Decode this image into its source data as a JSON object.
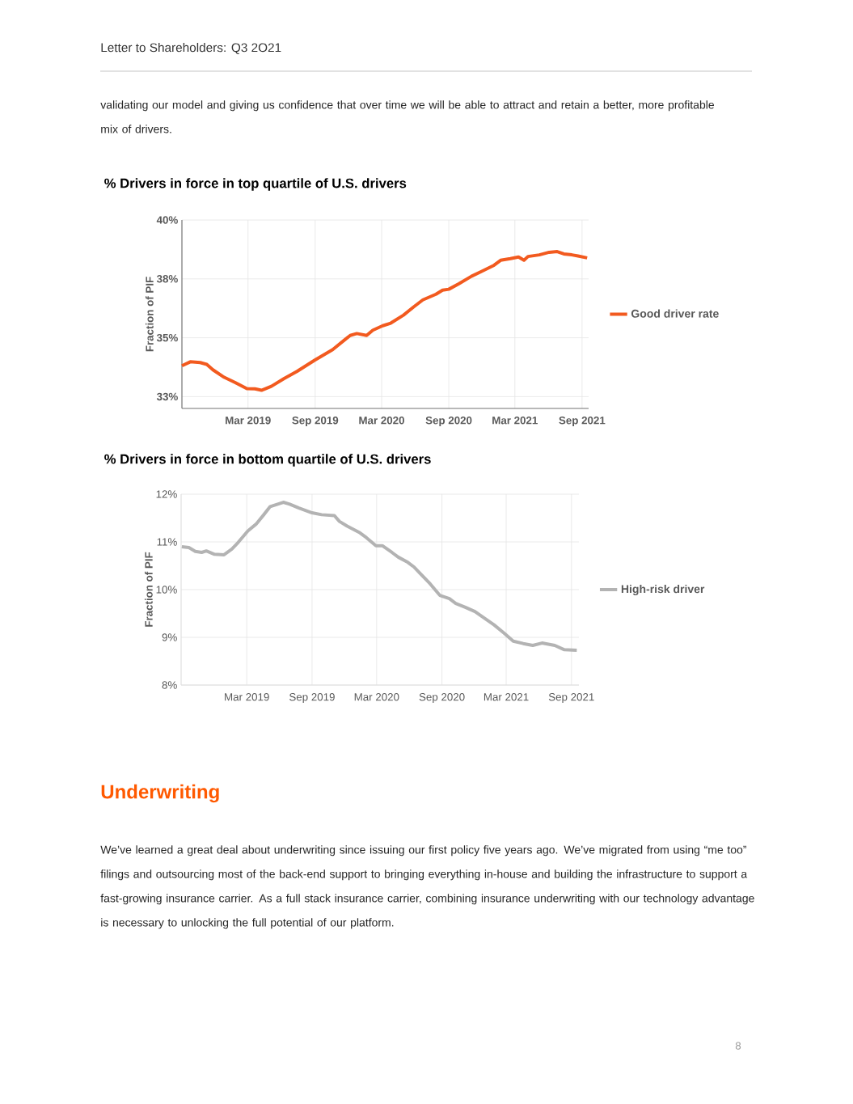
{
  "chart_data": [
    {
      "type": "line",
      "title": "% Drivers in force in top quartile of U.S. drivers",
      "ylabel": "Fraction of PIF",
      "annotations": [
        "Letter to Shareholders: Q3 2O21",
        "validating our model and giving us confidence that over time we will be able to attract and retain a better, more profitable mix of drivers."
      ],
      "x": [
        "2018-09-01",
        "2018-09-24",
        "2018-10-21",
        "2018-11-08",
        "2018-11-25",
        "2018-12-26",
        "2019-01-26",
        "2019-02-26",
        "2019-03-20",
        "2019-04-07",
        "2019-05-04",
        "2019-06-08",
        "2019-07-13",
        "2019-08-31",
        "2019-10-19",
        "2019-11-23",
        "2019-12-06",
        "2019-12-24",
        "2020-01-20",
        "2020-02-06",
        "2020-03-04",
        "2020-03-26",
        "2020-04-30",
        "2020-05-27",
        "2020-06-22",
        "2020-07-28",
        "2020-08-15",
        "2020-09-01",
        "2020-09-28",
        "2020-11-02",
        "2020-11-29",
        "2021-01-03",
        "2021-01-21",
        "2021-02-17",
        "2021-03-11",
        "2021-03-26",
        "2021-04-06",
        "2021-05-07",
        "2021-06-03",
        "2021-06-25",
        "2021-07-13",
        "2021-08-04",
        "2021-08-21",
        "2021-09-15"
      ],
      "series": [
        {
          "name": "Good driver rate",
          "color": "#f25a1f",
          "values": [
            33.81,
            33.98,
            33.95,
            33.87,
            33.64,
            33.32,
            33.09,
            32.84,
            32.83,
            32.77,
            32.94,
            33.27,
            33.57,
            34.05,
            34.5,
            34.94,
            35.1,
            35.18,
            35.1,
            35.32,
            35.51,
            35.62,
            35.96,
            36.3,
            36.61,
            36.85,
            37.02,
            37.06,
            37.29,
            37.61,
            37.81,
            38.08,
            38.29,
            38.36,
            38.43,
            38.29,
            38.45,
            38.52,
            38.63,
            38.66,
            38.56,
            38.52,
            38.47,
            38.39
          ]
        }
      ],
      "xlim": [
        "2018-09-01",
        "2021-09-19"
      ],
      "xticks": [
        {
          "value": "2019-03-01",
          "label": "Mar 2019"
        },
        {
          "value": "2019-09-01",
          "label": "Sep 2019"
        },
        {
          "value": "2020-03-01",
          "label": "Mar 2020"
        },
        {
          "value": "2020-09-01",
          "label": "Sep 2020"
        },
        {
          "value": "2021-03-01",
          "label": "Mar 2021"
        },
        {
          "value": "2021-09-01",
          "label": "Sep 2021"
        }
      ],
      "ylim": [
        32,
        40
      ],
      "yticks": [
        {
          "value": 32.5,
          "label": "33%"
        },
        {
          "value": 35,
          "label": "35%"
        },
        {
          "value": 37.5,
          "label": "38%"
        },
        {
          "value": 40,
          "label": "40%"
        }
      ],
      "grid": true,
      "legend": "right"
    },
    {
      "type": "line",
      "title": "% Drivers in force in bottom quartile  of U.S. drivers",
      "ylabel": "Fraction of PIF",
      "annotations": [
        "Underwriting",
        "We’ve learned a great deal about underwriting since issuing our first policy five years ago. We’ve migrated from using “me too” filings and outsourcing most of the back-end support to bringing everything in-house and building the infrastructure to support a fast-growing insurance carrier. As a full stack insurance carrier, combining insurance underwriting with our technology advantage is necessary to unlocking the full potential of our platform.",
        "8"
      ],
      "x": [
        "2018-08-30",
        "2018-09-19",
        "2018-10-07",
        "2018-10-25",
        "2018-11-07",
        "2018-11-30",
        "2018-12-27",
        "2019-01-18",
        "2019-02-05",
        "2019-03-04",
        "2019-03-27",
        "2019-04-18",
        "2019-05-06",
        "2019-06-12",
        "2019-06-30",
        "2019-07-26",
        "2019-09-01",
        "2019-09-28",
        "2019-11-03",
        "2019-11-17",
        "2019-12-09",
        "2020-01-14",
        "2020-02-01",
        "2020-02-28",
        "2020-03-17",
        "2020-04-13",
        "2020-05-01",
        "2020-05-28",
        "2020-06-15",
        "2020-07-03",
        "2020-07-30",
        "2020-08-26",
        "2020-09-22",
        "2020-10-10",
        "2020-11-06",
        "2020-12-03",
        "2020-12-30",
        "2021-01-26",
        "2021-02-23",
        "2021-03-21",
        "2021-04-18",
        "2021-05-15",
        "2021-06-10",
        "2021-07-16",
        "2021-08-12",
        "2021-09-16"
      ],
      "series": [
        {
          "name": "High-risk driver",
          "color": "#b3b3b3",
          "values": [
            10.9,
            10.88,
            10.8,
            10.78,
            10.81,
            10.74,
            10.73,
            10.85,
            10.99,
            11.23,
            11.37,
            11.57,
            11.74,
            11.83,
            11.79,
            11.71,
            11.61,
            11.57,
            11.55,
            11.43,
            11.33,
            11.19,
            11.09,
            10.92,
            10.92,
            10.78,
            10.68,
            10.57,
            10.47,
            10.33,
            10.12,
            9.88,
            9.81,
            9.71,
            9.63,
            9.54,
            9.4,
            9.26,
            9.09,
            8.92,
            8.87,
            8.83,
            8.88,
            8.83,
            8.74,
            8.73
          ]
        }
      ],
      "xlim": [
        "2018-08-28",
        "2021-09-22"
      ],
      "xticks": [
        {
          "value": "2019-03-01",
          "label": "Mar 2019"
        },
        {
          "value": "2019-09-01",
          "label": "Sep 2019"
        },
        {
          "value": "2020-03-01",
          "label": "Mar 2020"
        },
        {
          "value": "2020-09-01",
          "label": "Sep 2020"
        },
        {
          "value": "2021-03-01",
          "label": "Mar 2021"
        },
        {
          "value": "2021-09-01",
          "label": "Sep 2021"
        }
      ],
      "ylim": [
        8,
        12
      ],
      "yticks": [
        {
          "value": 8,
          "label": "8%"
        },
        {
          "value": 9,
          "label": "9%"
        },
        {
          "value": 10,
          "label": "10%"
        },
        {
          "value": 11,
          "label": "11%"
        },
        {
          "value": 12,
          "label": "12%"
        }
      ],
      "grid": true,
      "legend": "right"
    }
  ]
}
